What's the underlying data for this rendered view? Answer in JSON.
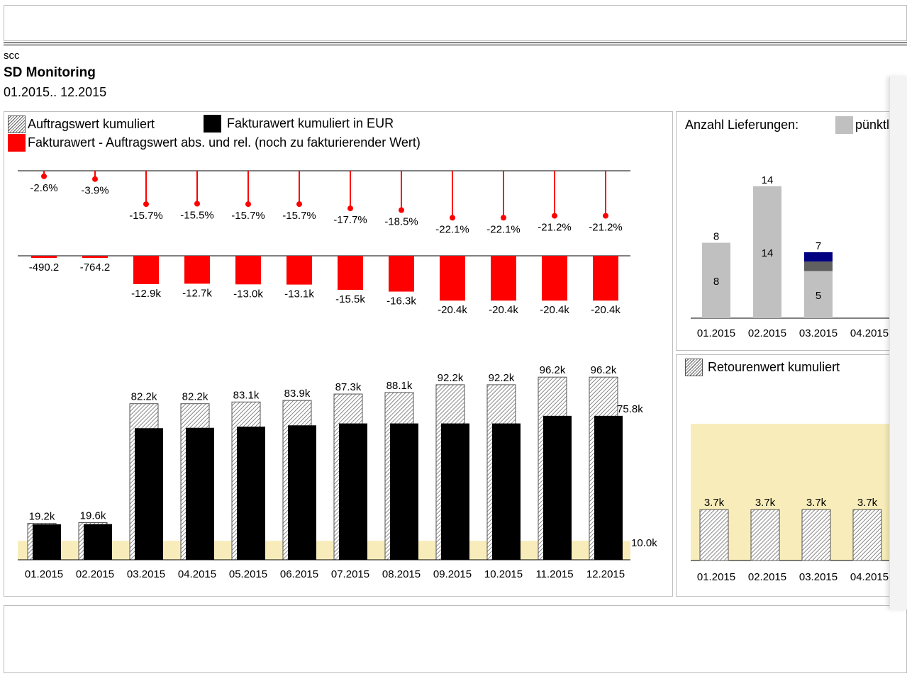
{
  "header": {
    "company": "scc",
    "title": "SD Monitoring",
    "period": "01.2015.. 12.2015"
  },
  "main_chart": {
    "legend": {
      "order": "Auftragswert kumuliert",
      "billing": "Fakturawert kumuliert in EUR",
      "diff": "Fakturawert - Auftragswert abs. und rel. (noch zu fakturierender Wert)"
    },
    "reference_label": "10.0k",
    "last_billing_label": "75.8k"
  },
  "deliveries_panel": {
    "title": "Anzahl Lieferungen:",
    "legend_punctual": "pünktlich"
  },
  "returns_panel": {
    "legend": "Retourenwert kumuliert"
  },
  "colors": {
    "diff_red": "#ff0000",
    "billing_black": "#000000",
    "reference_band": "#f8edba",
    "delivery_grey": "#c0c0c0",
    "delivery_navy": "#000080",
    "delivery_darkgrey": "#606060"
  },
  "chart_data": [
    {
      "type": "bar",
      "categories": [
        "01.2015",
        "02.2015",
        "03.2015",
        "04.2015",
        "05.2015",
        "06.2015",
        "07.2015",
        "08.2015",
        "09.2015",
        "10.2015",
        "11.2015",
        "12.2015"
      ],
      "series": [
        {
          "name": "Auftragswert kumuliert",
          "values": [
            19.2,
            19.6,
            82.2,
            82.2,
            83.1,
            83.9,
            87.3,
            88.1,
            92.2,
            92.2,
            96.2,
            96.2
          ],
          "labels": [
            "19.2k",
            "19.6k",
            "82.2k",
            "82.2k",
            "83.1k",
            "83.9k",
            "87.3k",
            "88.1k",
            "92.2k",
            "92.2k",
            "96.2k",
            "96.2k"
          ]
        },
        {
          "name": "Fakturawert kumuliert in EUR",
          "values": [
            18.7,
            18.8,
            69.3,
            69.5,
            70.1,
            70.8,
            71.8,
            71.8,
            71.8,
            71.8,
            75.8,
            75.8
          ]
        },
        {
          "name": "Fakturawert - Auftragswert abs.",
          "values": [
            -0.4902,
            -0.7642,
            -12.9,
            -12.7,
            -13.0,
            -13.1,
            -15.5,
            -16.3,
            -20.4,
            -20.4,
            -20.4,
            -20.4
          ],
          "labels": [
            "-490.2",
            "-764.2",
            "-12.9k",
            "-12.7k",
            "-13.0k",
            "-13.1k",
            "-15.5k",
            "-16.3k",
            "-20.4k",
            "-20.4k",
            "-20.4k",
            "-20.4k"
          ]
        },
        {
          "name": "Fakturawert - Auftragswert rel.",
          "values": [
            -2.6,
            -3.9,
            -15.7,
            -15.5,
            -15.7,
            -15.7,
            -17.7,
            -18.5,
            -22.1,
            -22.1,
            -21.2,
            -21.2
          ],
          "labels": [
            "-2.6%",
            "-3.9%",
            "-15.7%",
            "-15.5%",
            "-15.7%",
            "-15.7%",
            "-17.7%",
            "-18.5%",
            "-22.1%",
            "-22.1%",
            "-21.2%",
            "-21.2%"
          ]
        }
      ],
      "reference_value": 10.0
    },
    {
      "type": "bar",
      "title": "Anzahl Lieferungen:",
      "categories": [
        "01.2015",
        "02.2015",
        "03.2015",
        "04.2015"
      ],
      "totals": [
        8,
        14,
        7,
        null
      ],
      "series": [
        {
          "name": "pünktlich",
          "values": [
            8,
            14,
            5,
            null
          ]
        },
        {
          "name": "",
          "values": [
            0,
            0,
            1,
            null
          ]
        },
        {
          "name": "",
          "values": [
            0,
            0,
            1,
            null
          ]
        }
      ]
    },
    {
      "type": "bar",
      "categories": [
        "01.2015",
        "02.2015",
        "03.2015",
        "04.2015"
      ],
      "series": [
        {
          "name": "Retourenwert kumuliert",
          "values": [
            3.7,
            3.7,
            3.7,
            3.7
          ],
          "labels": [
            "3.7k",
            "3.7k",
            "3.7k",
            "3.7k"
          ]
        }
      ]
    }
  ]
}
